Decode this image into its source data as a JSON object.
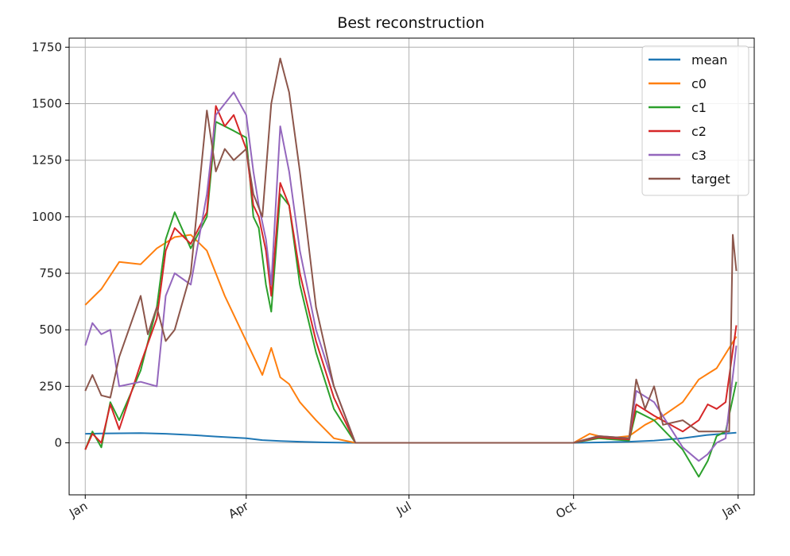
{
  "chart_data": {
    "type": "line",
    "title": "Best reconstruction",
    "xlabel": "",
    "ylabel": "",
    "x_ticks": [
      "Jan",
      "Apr",
      "Jul",
      "Oct",
      "Jan"
    ],
    "y_ticks": [
      "0",
      "250",
      "500",
      "750",
      "1000",
      "1250",
      "1500",
      "1750"
    ],
    "ylim": [
      -230,
      1790
    ],
    "xlim_days": [
      -9,
      374
    ],
    "grid": true,
    "legend_position": "top-right",
    "series": [
      {
        "name": "mean",
        "color": "#1f77b4",
        "x": [
          "Jan 1",
          "Jan 15",
          "Feb 1",
          "Feb 15",
          "Mar 1",
          "Mar 15",
          "Apr 1",
          "Apr 10",
          "Apr 20",
          "May 1",
          "May 15",
          "Jun 1",
          "Jul 1",
          "Aug 1",
          "Sep 1",
          "Oct 1",
          "Oct 15",
          "Nov 1",
          "Nov 15",
          "Dec 1",
          "Dec 15",
          "Dec 31"
        ],
        "values": [
          40,
          42,
          43,
          40,
          35,
          28,
          20,
          12,
          8,
          5,
          2,
          0,
          0,
          0,
          0,
          0,
          2,
          5,
          10,
          20,
          35,
          45
        ]
      },
      {
        "name": "c0",
        "color": "#ff7f0e",
        "x": [
          "Jan 1",
          "Jan 10",
          "Jan 20",
          "Feb 1",
          "Feb 10",
          "Feb 20",
          "Mar 1",
          "Mar 10",
          "Mar 20",
          "Apr 1",
          "Apr 10",
          "Apr 15",
          "Apr 20",
          "Apr 25",
          "May 1",
          "May 10",
          "May 20",
          "Jun 1",
          "Jul 1",
          "Aug 1",
          "Sep 1",
          "Oct 1",
          "Oct 10",
          "Oct 20",
          "Nov 1",
          "Nov 10",
          "Nov 20",
          "Dec 1",
          "Dec 10",
          "Dec 20",
          "Dec 31"
        ],
        "values": [
          610,
          680,
          800,
          790,
          860,
          910,
          920,
          850,
          650,
          450,
          300,
          420,
          290,
          260,
          180,
          100,
          20,
          0,
          0,
          0,
          0,
          0,
          40,
          20,
          30,
          80,
          120,
          180,
          280,
          330,
          470
        ]
      },
      {
        "name": "c1",
        "color": "#2ca02c",
        "x": [
          "Jan 1",
          "Jan 5",
          "Jan 10",
          "Jan 15",
          "Jan 20",
          "Feb 1",
          "Feb 10",
          "Feb 15",
          "Feb 20",
          "Mar 1",
          "Mar 10",
          "Mar 15",
          "Mar 20",
          "Mar 25",
          "Apr 1",
          "Apr 5",
          "Apr 8",
          "Apr 12",
          "Apr 15",
          "Apr 20",
          "Apr 25",
          "May 1",
          "May 10",
          "May 20",
          "Jun 1",
          "Jul 1",
          "Aug 1",
          "Sep 1",
          "Oct 1",
          "Oct 15",
          "Nov 1",
          "Nov 5",
          "Nov 15",
          "Dec 1",
          "Dec 10",
          "Dec 15",
          "Dec 20",
          "Dec 25",
          "Dec 31"
        ],
        "values": [
          -30,
          50,
          -20,
          180,
          100,
          320,
          600,
          900,
          1020,
          860,
          1000,
          1420,
          1400,
          1380,
          1350,
          1000,
          950,
          700,
          580,
          1100,
          1050,
          700,
          400,
          150,
          0,
          0,
          0,
          0,
          0,
          20,
          10,
          140,
          100,
          -30,
          -150,
          -80,
          30,
          50,
          270
        ]
      },
      {
        "name": "c2",
        "color": "#d62728",
        "x": [
          "Jan 1",
          "Jan 5",
          "Jan 10",
          "Jan 15",
          "Jan 20",
          "Feb 1",
          "Feb 10",
          "Feb 15",
          "Feb 20",
          "Mar 1",
          "Mar 10",
          "Mar 15",
          "Mar 20",
          "Mar 25",
          "Apr 1",
          "Apr 5",
          "Apr 8",
          "Apr 12",
          "Apr 15",
          "Apr 20",
          "Apr 25",
          "May 1",
          "May 10",
          "May 20",
          "Jun 1",
          "Jul 1",
          "Aug 1",
          "Sep 1",
          "Oct 1",
          "Oct 15",
          "Nov 1",
          "Nov 5",
          "Nov 15",
          "Dec 1",
          "Dec 10",
          "Dec 15",
          "Dec 20",
          "Dec 25",
          "Dec 31"
        ],
        "values": [
          -30,
          40,
          0,
          170,
          60,
          350,
          550,
          850,
          950,
          880,
          1020,
          1490,
          1400,
          1450,
          1300,
          1050,
          1000,
          850,
          650,
          1150,
          1050,
          750,
          450,
          200,
          0,
          0,
          0,
          0,
          0,
          25,
          15,
          170,
          120,
          50,
          100,
          170,
          150,
          180,
          520
        ]
      },
      {
        "name": "c3",
        "color": "#9467bd",
        "x": [
          "Jan 1",
          "Jan 5",
          "Jan 10",
          "Jan 15",
          "Jan 20",
          "Feb 1",
          "Feb 10",
          "Feb 15",
          "Feb 20",
          "Mar 1",
          "Mar 10",
          "Mar 15",
          "Mar 20",
          "Mar 25",
          "Apr 1",
          "Apr 5",
          "Apr 8",
          "Apr 12",
          "Apr 15",
          "Apr 20",
          "Apr 25",
          "May 1",
          "May 10",
          "May 20",
          "Jun 1",
          "Jul 1",
          "Aug 1",
          "Sep 1",
          "Oct 1",
          "Oct 15",
          "Nov 1",
          "Nov 5",
          "Nov 15",
          "Dec 1",
          "Dec 10",
          "Dec 15",
          "Dec 20",
          "Dec 25",
          "Dec 31"
        ],
        "values": [
          430,
          530,
          480,
          500,
          250,
          270,
          250,
          650,
          750,
          700,
          1100,
          1450,
          1500,
          1550,
          1450,
          1200,
          1050,
          900,
          700,
          1400,
          1200,
          850,
          500,
          250,
          0,
          0,
          0,
          0,
          0,
          30,
          20,
          230,
          180,
          -20,
          -80,
          -50,
          0,
          20,
          430
        ]
      },
      {
        "name": "target",
        "color": "#8c564b",
        "x": [
          "Jan 1",
          "Jan 5",
          "Jan 10",
          "Jan 15",
          "Jan 20",
          "Feb 1",
          "Feb 5",
          "Feb 10",
          "Feb 15",
          "Feb 20",
          "Mar 1",
          "Mar 10",
          "Mar 15",
          "Mar 20",
          "Mar 25",
          "Apr 1",
          "Apr 5",
          "Apr 10",
          "Apr 15",
          "Apr 20",
          "Apr 25",
          "May 1",
          "May 10",
          "May 20",
          "Jun 1",
          "Jul 1",
          "Aug 1",
          "Sep 1",
          "Oct 1",
          "Oct 15",
          "Nov 1",
          "Nov 5",
          "Nov 10",
          "Nov 15",
          "Nov 20",
          "Dec 1",
          "Dec 10",
          "Dec 20",
          "Dec 27",
          "Dec 29",
          "Dec 31"
        ],
        "values": [
          230,
          300,
          210,
          200,
          380,
          650,
          480,
          600,
          450,
          500,
          750,
          1470,
          1200,
          1300,
          1250,
          1300,
          1100,
          1000,
          1500,
          1700,
          1550,
          1200,
          600,
          250,
          0,
          0,
          0,
          0,
          0,
          30,
          20,
          280,
          150,
          250,
          80,
          100,
          50,
          50,
          50,
          920,
          760
        ]
      }
    ]
  }
}
